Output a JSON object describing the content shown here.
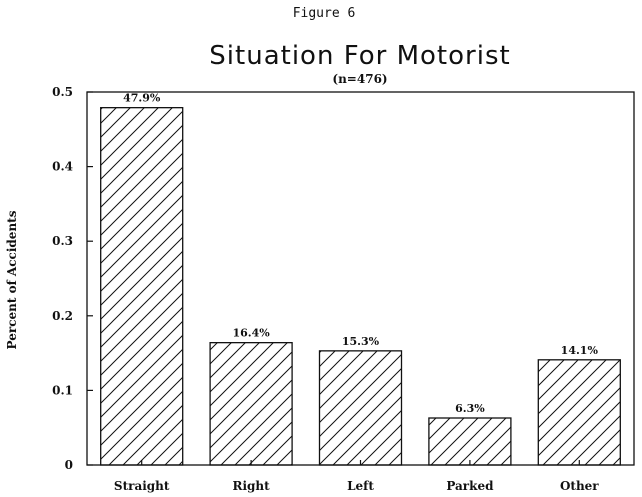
{
  "figure_label": "Figure 6",
  "chart_data": {
    "type": "bar",
    "title": "Situation For Motorist",
    "subtitle": "(n=476)",
    "xlabel": "",
    "ylabel": "Percent of Accidents",
    "categories": [
      "Straight",
      "Right",
      "Left",
      "Parked",
      "Other"
    ],
    "values": [
      0.479,
      0.164,
      0.153,
      0.063,
      0.141
    ],
    "data_labels": [
      "47.9%",
      "16.4%",
      "15.3%",
      "6.3%",
      "14.1%"
    ],
    "ylim": [
      0,
      0.5
    ],
    "yticks": [
      "0",
      "0.1",
      "0.2",
      "0.3",
      "0.4",
      "0.5"
    ],
    "grid": false,
    "legend": "none",
    "bar_fill": "diagonal hatch",
    "colors": {
      "ink": "#111111",
      "background": "#ffffff"
    }
  }
}
